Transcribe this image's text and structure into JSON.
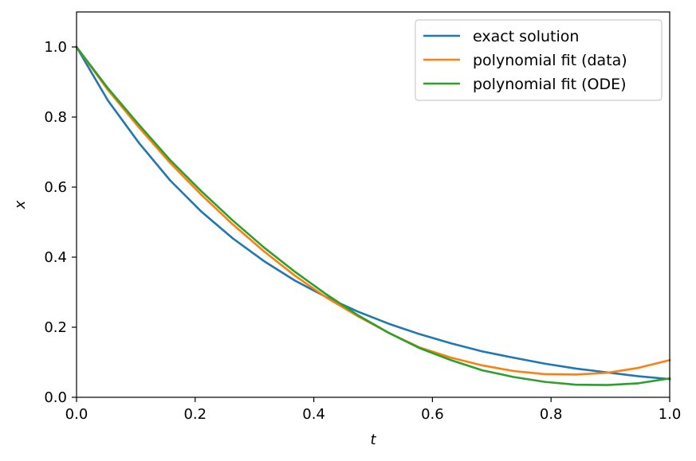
{
  "chart_data": {
    "type": "line",
    "xlabel": "t",
    "ylabel": "x",
    "xlim": [
      0.0,
      1.0
    ],
    "ylim": [
      0.0,
      1.1
    ],
    "xticks": [
      "0.0",
      "0.2",
      "0.4",
      "0.6",
      "0.8",
      "1.0"
    ],
    "yticks": [
      "0.0",
      "0.2",
      "0.4",
      "0.6",
      "0.8",
      "1.0"
    ],
    "grid": false,
    "legend_position": "top-right",
    "x": [
      0.0,
      0.0526,
      0.1053,
      0.1579,
      0.2105,
      0.2632,
      0.3158,
      0.3684,
      0.4211,
      0.4737,
      0.5263,
      0.5789,
      0.6316,
      0.6842,
      0.7368,
      0.7895,
      0.8421,
      0.8947,
      0.9474,
      1.0
    ],
    "series": [
      {
        "name": "exact solution",
        "color": "#1f77b4",
        "values": [
          1.0,
          0.848,
          0.726,
          0.619,
          0.53,
          0.454,
          0.389,
          0.333,
          0.286,
          0.245,
          0.21,
          0.18,
          0.154,
          0.131,
          0.113,
          0.096,
          0.082,
          0.071,
          0.06,
          0.052
        ]
      },
      {
        "name": "polynomial fit (data)",
        "color": "#ff7f0e",
        "values": [
          1.0,
          0.878,
          0.77,
          0.669,
          0.578,
          0.494,
          0.417,
          0.347,
          0.285,
          0.232,
          0.184,
          0.142,
          0.113,
          0.091,
          0.075,
          0.066,
          0.065,
          0.07,
          0.084,
          0.106
        ]
      },
      {
        "name": "polynomial fit (ODE)",
        "color": "#2ca02c",
        "values": [
          1.0,
          0.883,
          0.778,
          0.677,
          0.588,
          0.505,
          0.428,
          0.358,
          0.294,
          0.235,
          0.184,
          0.14,
          0.106,
          0.077,
          0.058,
          0.044,
          0.036,
          0.035,
          0.04,
          0.054
        ]
      }
    ]
  }
}
